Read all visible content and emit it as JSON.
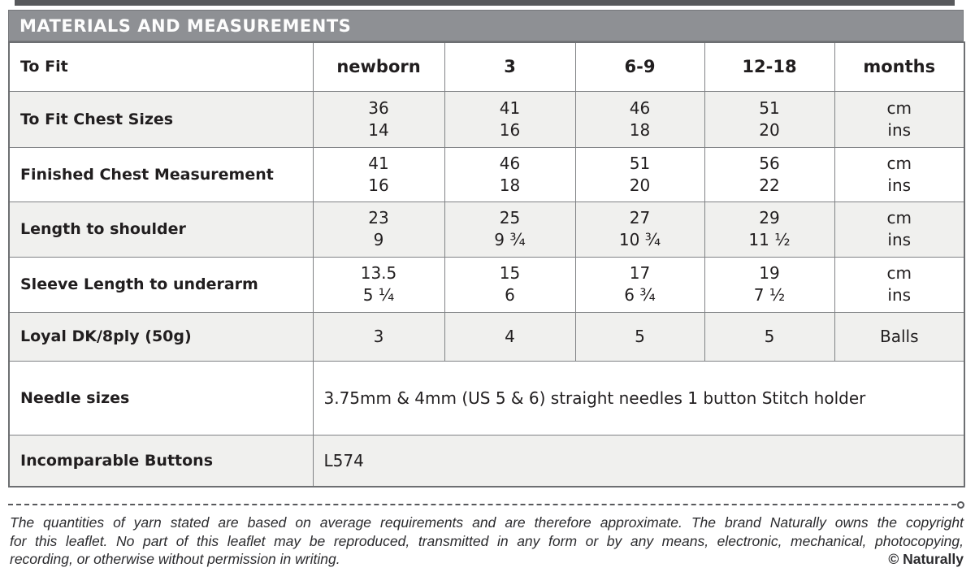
{
  "title_bar": {
    "label": "MATERIALS AND MEASUREMENTS"
  },
  "table": {
    "header_row": {
      "label": "To Fit",
      "values": [
        "newborn",
        "3",
        "6-9",
        "12-18",
        "months"
      ]
    },
    "rows": [
      {
        "label": "To Fit Chest Sizes",
        "cells": [
          [
            "36",
            "14"
          ],
          [
            "41",
            "16"
          ],
          [
            "46",
            "18"
          ],
          [
            "51",
            "20"
          ],
          [
            "cm",
            "ins"
          ]
        ]
      },
      {
        "label": "Finished Chest Measurement",
        "cells": [
          [
            "41",
            "16"
          ],
          [
            "46",
            "18"
          ],
          [
            "51",
            "20"
          ],
          [
            "56",
            "22"
          ],
          [
            "cm",
            "ins"
          ]
        ]
      },
      {
        "label": "Length to shoulder",
        "cells": [
          [
            "23",
            "9"
          ],
          [
            "25",
            "9 ¾"
          ],
          [
            "27",
            "10 ¾"
          ],
          [
            "29",
            "11 ½"
          ],
          [
            "cm",
            "ins"
          ]
        ]
      },
      {
        "label": "Sleeve Length to underarm",
        "cells": [
          [
            "13.5",
            "5 ¼"
          ],
          [
            "15",
            "6"
          ],
          [
            "17",
            "6 ¾"
          ],
          [
            "19",
            "7 ½"
          ],
          [
            "cm",
            "ins"
          ]
        ]
      },
      {
        "label": "Loyal DK/8ply (50g)",
        "cells": [
          "3",
          "4",
          "5",
          "5",
          "Balls"
        ]
      }
    ],
    "needle_row": {
      "label": "Needle sizes",
      "lines": [
        "3.75mm & 4mm (US 5 & 6) straight needles",
        "1 button",
        "Stitch holder"
      ]
    },
    "buttons_row": {
      "label": "Incomparable Buttons",
      "value": "L574"
    }
  },
  "footer": {
    "lines": [
      "The quantities of yarn stated are based on average requirements and are therefore approximate. The brand Naturally owns the copyright",
      "for this leaflet. No part of this leaflet may be reproduced, transmitted in any form or by any means, electronic, mechanical, photocopying,",
      "recording, or otherwise without permission in writing."
    ],
    "copyright": "© Naturally"
  },
  "colors": {
    "title_bar_bg": "#8e9094",
    "row_stripe_bg": "#f0f0ee",
    "border": "#808285",
    "top_strip": "#58595c",
    "text": "#211e1f"
  }
}
